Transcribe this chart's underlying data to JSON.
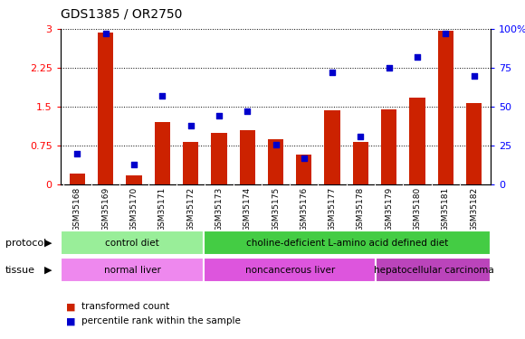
{
  "title": "GDS1385 / OR2750",
  "samples": [
    "GSM35168",
    "GSM35169",
    "GSM35170",
    "GSM35171",
    "GSM35172",
    "GSM35173",
    "GSM35174",
    "GSM35175",
    "GSM35176",
    "GSM35177",
    "GSM35178",
    "GSM35179",
    "GSM35180",
    "GSM35181",
    "GSM35182"
  ],
  "bar_values": [
    0.22,
    2.93,
    0.18,
    1.2,
    0.82,
    1.0,
    1.05,
    0.88,
    0.58,
    1.43,
    0.82,
    1.45,
    1.68,
    2.97,
    1.58
  ],
  "dot_values": [
    20,
    97,
    13,
    57,
    38,
    44,
    47,
    26,
    17,
    72,
    31,
    75,
    82,
    97,
    70
  ],
  "bar_color": "#cc2200",
  "dot_color": "#0000cc",
  "ylim_left": [
    0,
    3.0
  ],
  "ylim_right": [
    0,
    100
  ],
  "yticks_left": [
    0,
    0.75,
    1.5,
    2.25,
    3.0
  ],
  "yticks_right": [
    0,
    25,
    50,
    75,
    100
  ],
  "ytick_labels_left": [
    "0",
    "0.75",
    "1.5",
    "2.25",
    "3"
  ],
  "ytick_labels_right": [
    "0",
    "25",
    "50",
    "75",
    "100%"
  ],
  "protocol_groups": [
    {
      "label": "control diet",
      "start": 0,
      "end": 5,
      "color": "#99ee99"
    },
    {
      "label": "choline-deficient L-amino acid defined diet",
      "start": 5,
      "end": 15,
      "color": "#44cc44"
    }
  ],
  "tissue_groups": [
    {
      "label": "normal liver",
      "start": 0,
      "end": 5,
      "color": "#ee88ee"
    },
    {
      "label": "noncancerous liver",
      "start": 5,
      "end": 11,
      "color": "#dd55dd"
    },
    {
      "label": "hepatocellular carcinoma",
      "start": 11,
      "end": 15,
      "color": "#bb44bb"
    }
  ],
  "protocol_label": "protocol",
  "tissue_label": "tissue",
  "legend_bar_label": "transformed count",
  "legend_dot_label": "percentile rank within the sample",
  "background_color": "#ffffff",
  "plot_bg_color": "#ffffff",
  "xtick_bg_color": "#cccccc",
  "grid_color": "#000000"
}
